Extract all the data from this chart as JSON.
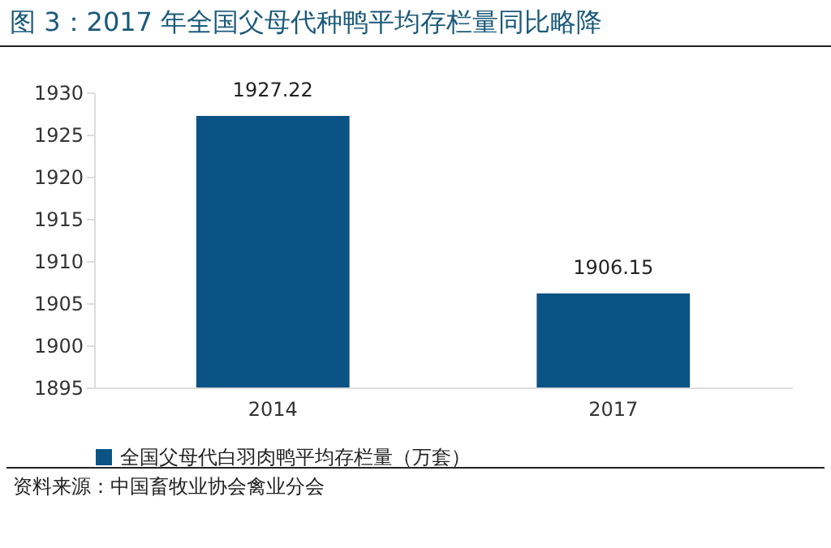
{
  "chart_data": {
    "type": "bar",
    "title": "图 3：2017 年全国父母代种鸭平均存栏量同比略降",
    "categories": [
      "2014",
      "2017"
    ],
    "series": [
      {
        "name": "全国父母代白羽肉鸭平均存栏量（万套）",
        "color": "#0b5385",
        "values": [
          1927.22,
          1906.15
        ]
      }
    ],
    "ylim": [
      1895,
      1930
    ],
    "yticks": [
      1895,
      1900,
      1905,
      1910,
      1915,
      1920,
      1925,
      1930
    ],
    "data_labels": true,
    "legend": "bottom",
    "annotations": [
      "资料来源：中国畜牧业协会禽业分会"
    ]
  }
}
